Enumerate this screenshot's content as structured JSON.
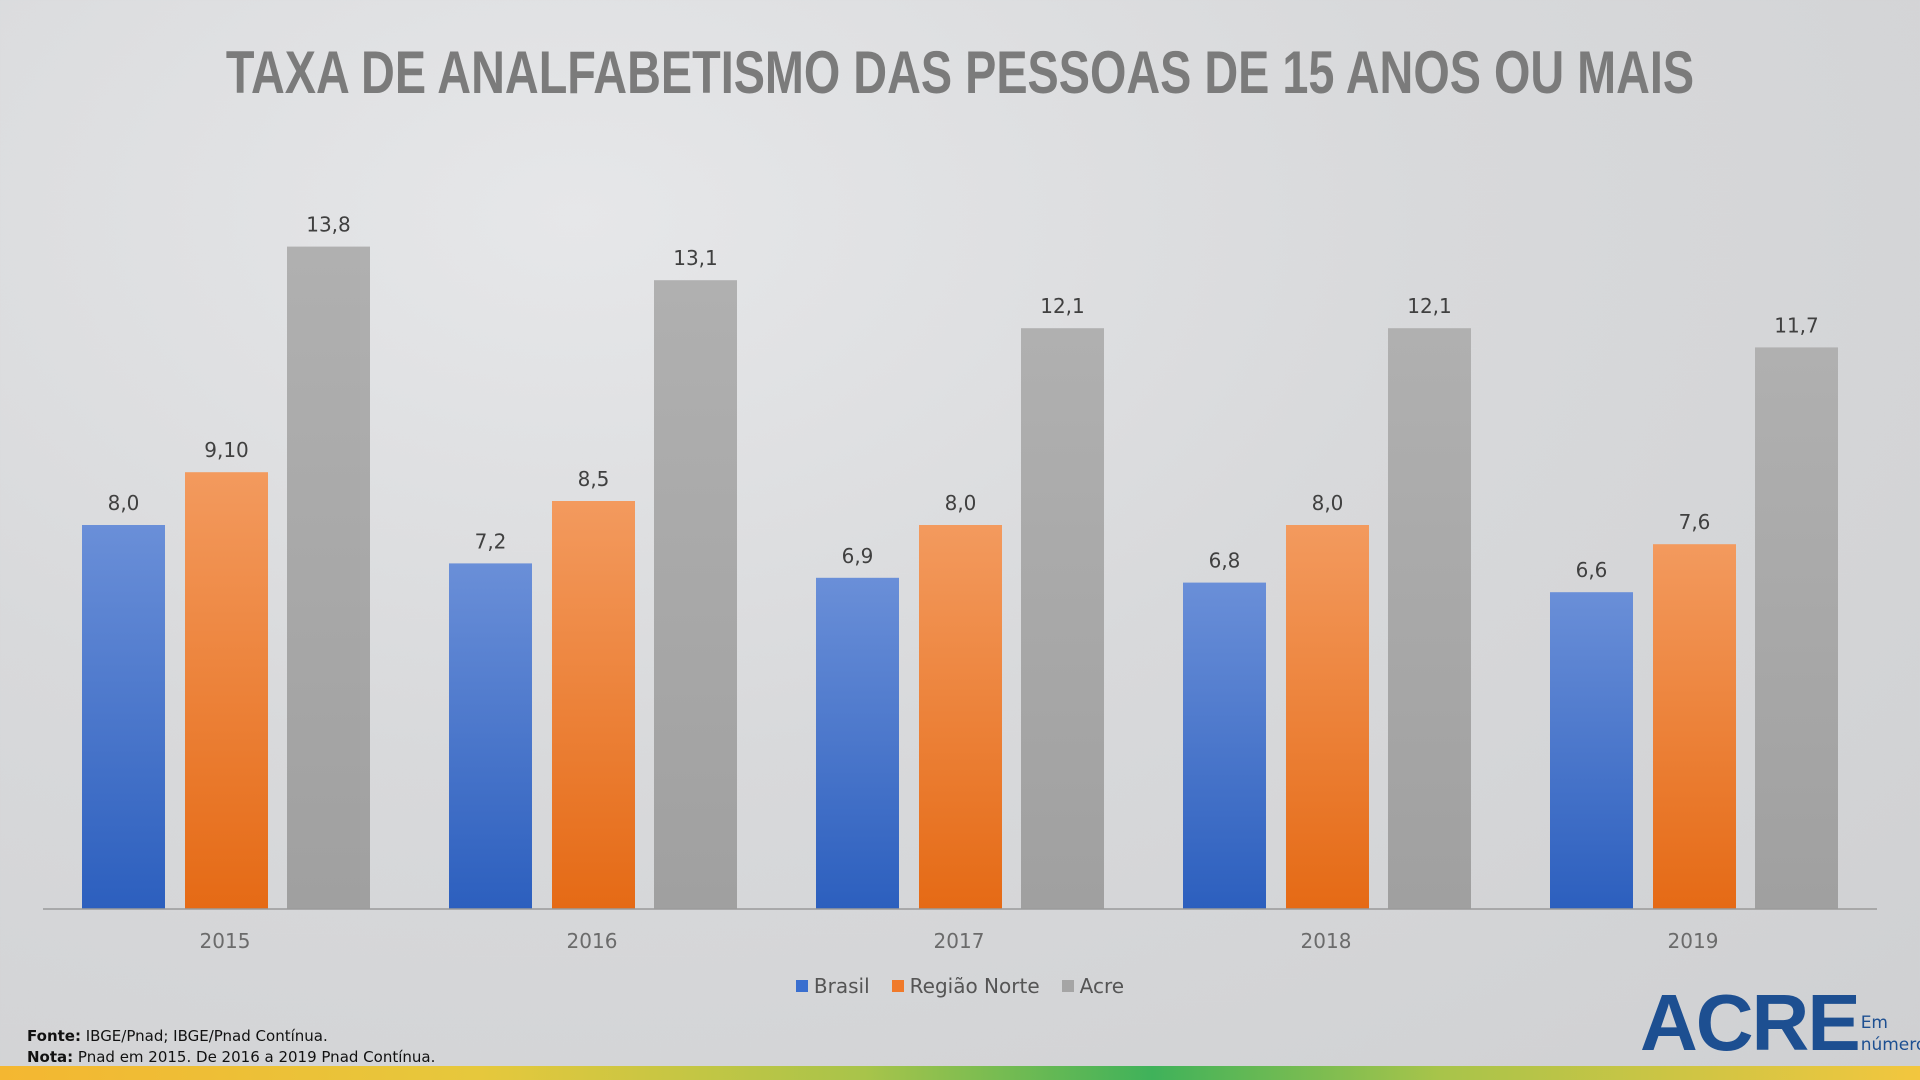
{
  "chart_data": {
    "type": "bar",
    "title": "TAXA DE ANALFABETISMO DAS PESSOAS DE 15 ANOS OU MAIS",
    "categories": [
      "2015",
      "2016",
      "2017",
      "2018",
      "2019"
    ],
    "series": [
      {
        "name": "Brasil",
        "color": "#3a6fcf",
        "values": [
          8.0,
          7.2,
          6.9,
          6.8,
          6.6
        ],
        "labels": [
          "8,0",
          "7,2",
          "6,9",
          "6,8",
          "6,6"
        ]
      },
      {
        "name": "Região Norte",
        "color": "#f07a2a",
        "values": [
          9.1,
          8.5,
          8.0,
          8.0,
          7.6
        ],
        "labels": [
          "9,10",
          "8,5",
          "8,0",
          "8,0",
          "7,6"
        ]
      },
      {
        "name": "Acre",
        "color": "#a5a5a5",
        "values": [
          13.8,
          13.1,
          12.1,
          12.1,
          11.7
        ],
        "labels": [
          "13,8",
          "13,1",
          "12,1",
          "12,1",
          "11,7"
        ]
      }
    ],
    "xlabel": "",
    "ylabel": "",
    "ylim": [
      0,
      14
    ],
    "grid": false,
    "legend": "bottom"
  },
  "notes": {
    "fonte_label": "Fonte:",
    "fonte": " IBGE/Pnad;  IBGE/Pnad Contínua.",
    "nota_label": "Nota:",
    "nota": " Pnad em 2015. De 2016 a 2019 Pnad Contínua."
  },
  "logo": {
    "main": "ACRE",
    "line1": "Em",
    "line2": "números"
  }
}
